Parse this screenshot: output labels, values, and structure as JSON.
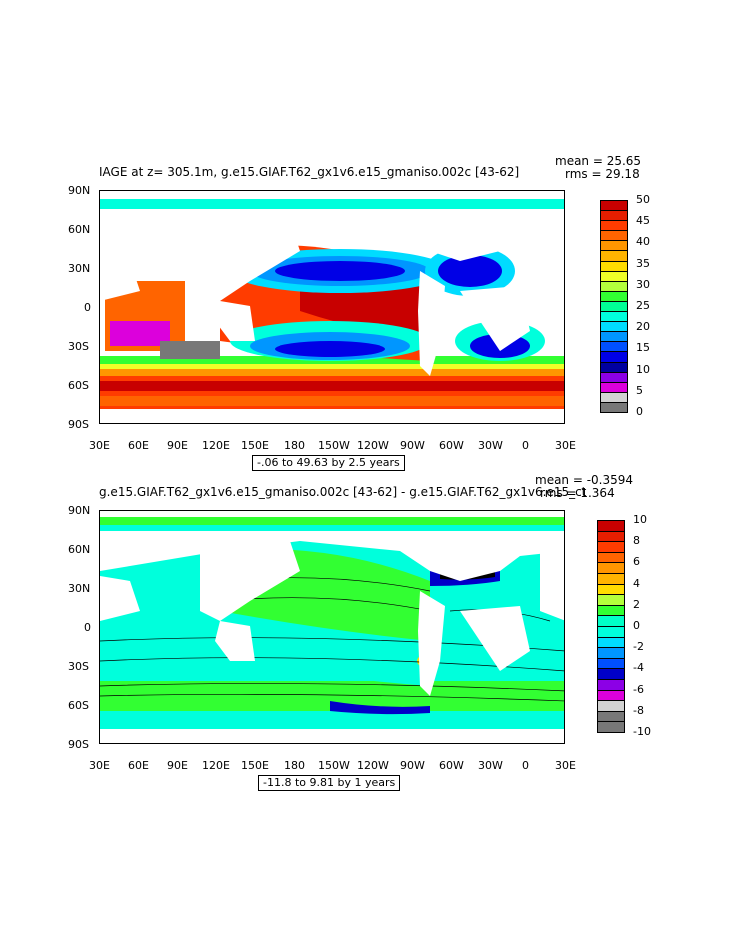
{
  "top": {
    "title": "IAGE at z= 305.1m, g.e15.GIAF.T62_gx1v6.e15_gmaniso.002c [43-62]",
    "mean": "mean = 25.65",
    "rms": "rms = 29.18",
    "range": "-.06 to 49.63 by 2.5 years",
    "colorbar": {
      "labels": [
        "50",
        "45",
        "40",
        "35",
        "30",
        "25",
        "20",
        "15",
        "10",
        "5",
        "0"
      ],
      "colors": [
        "#c80000",
        "#e61e00",
        "#ff3c00",
        "#ff6400",
        "#ff9600",
        "#ffb400",
        "#ffdc00",
        "#f0ff28",
        "#b4ff3c",
        "#32ff32",
        "#00ff96",
        "#00ffdc",
        "#00dcff",
        "#0096ff",
        "#0050ff",
        "#0000e6",
        "#0000a0",
        "#8c00e6",
        "#dc00dc",
        "#d2d2d2",
        "#787878"
      ]
    }
  },
  "bottom": {
    "title": "g.e15.GIAF.T62_gx1v6.e15_gmaniso.002c [43-62] - g.e15.GIAF.T62_gx1v6.e15_ct",
    "mean": "mean = -0.3594",
    "rms": "rms = 1.364",
    "range": "-11.8 to 9.81 by 1 years",
    "colorbar": {
      "labels": [
        "10",
        "8",
        "6",
        "4",
        "2",
        "0",
        "-2",
        "-4",
        "-6",
        "-8",
        "-10"
      ],
      "colors": [
        "#c80000",
        "#e61e00",
        "#ff3c00",
        "#ff6400",
        "#ff9600",
        "#ffb400",
        "#ffdc00",
        "#b4ff3c",
        "#32ff32",
        "#00ffc8",
        "#00ffdc",
        "#00dcff",
        "#0096ff",
        "#0050ff",
        "#0000c8",
        "#8c00e6",
        "#dc00dc",
        "#d2d2d2",
        "#787878",
        "#787878"
      ]
    }
  },
  "axes": {
    "lat_labels": [
      "90N",
      "60N",
      "30N",
      "0",
      "30S",
      "60S",
      "90S"
    ],
    "lon_labels": [
      "30E",
      "60E",
      "90E",
      "120E",
      "150E",
      "180",
      "150W",
      "120W",
      "90W",
      "60W",
      "30W",
      "0",
      "30E"
    ]
  }
}
